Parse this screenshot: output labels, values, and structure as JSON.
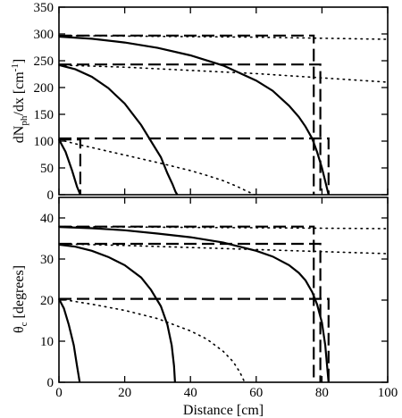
{
  "chart_data": [
    {
      "type": "line",
      "panel": "top",
      "ylabel": "dN_ph/dx [cm^-1]",
      "ylabel_parts": {
        "main": "dN",
        "sub": "ph",
        "mid": "/dx [cm",
        "sup": "-1",
        "end": "]"
      },
      "xlabel": "",
      "xlim": [
        0,
        100
      ],
      "ylim": [
        0,
        350
      ],
      "yticks": [
        0,
        50,
        100,
        150,
        200,
        250,
        300,
        350
      ],
      "xticks": [
        0,
        20,
        40,
        60,
        80,
        100
      ],
      "show_xtick_labels": false,
      "grid": false,
      "series": [
        {
          "style": "solid",
          "x": [
            0,
            2,
            4,
            5.5,
            6.5
          ],
          "y": [
            103,
            80,
            45,
            15,
            0
          ]
        },
        {
          "style": "solid",
          "x": [
            0,
            5,
            10,
            15,
            20,
            25,
            28,
            31,
            33,
            34.5,
            35.5,
            36
          ],
          "y": [
            242,
            234,
            220,
            199,
            170,
            130,
            100,
            70,
            40,
            20,
            5,
            0
          ]
        },
        {
          "style": "solid",
          "x": [
            0,
            10,
            20,
            30,
            40,
            50,
            60,
            65,
            70,
            73,
            75,
            77,
            78.5,
            80,
            81,
            82
          ],
          "y": [
            295,
            291,
            284,
            274,
            260,
            241,
            213,
            194,
            166,
            145,
            127,
            105,
            80,
            50,
            25,
            0
          ]
        },
        {
          "style": "dashed",
          "x": [
            0,
            6.5,
            6.5
          ],
          "y": [
            103,
            103,
            0
          ],
          "note": "overlaps solid near x=6.5"
        },
        {
          "style": "dashed",
          "x": [
            0,
            82,
            82
          ],
          "y": [
            105,
            105,
            0
          ]
        },
        {
          "style": "dashed",
          "x": [
            0,
            79.5,
            79.5
          ],
          "y": [
            243,
            243,
            0
          ]
        },
        {
          "style": "dashed",
          "x": [
            0,
            77.5,
            77.5
          ],
          "y": [
            297,
            297,
            0
          ]
        },
        {
          "style": "dotted",
          "x": [
            0,
            5,
            10,
            20,
            30,
            40,
            45,
            50,
            54,
            57,
            59.5
          ],
          "y": [
            103,
            95,
            88,
            74,
            60,
            45,
            36,
            26,
            16,
            7,
            0
          ]
        },
        {
          "style": "dotted",
          "x": [
            0,
            20,
            40,
            60,
            80,
            100
          ],
          "y": [
            242,
            238,
            232,
            226,
            218,
            210
          ]
        },
        {
          "style": "dotted",
          "x": [
            0,
            20,
            40,
            60,
            80,
            100
          ],
          "y": [
            297,
            296,
            295,
            294,
            292,
            290
          ]
        }
      ]
    },
    {
      "type": "line",
      "panel": "bottom",
      "ylabel": "θc [degrees]",
      "ylabel_parts": {
        "main": "θ",
        "sub": "c",
        "end": " [degrees]"
      },
      "xlabel": "Distance [cm]",
      "xlim": [
        0,
        100
      ],
      "ylim": [
        0,
        45
      ],
      "yticks": [
        0,
        10,
        20,
        30,
        40
      ],
      "xticks": [
        0,
        20,
        40,
        60,
        80,
        100
      ],
      "show_xtick_labels": true,
      "grid": false,
      "series": [
        {
          "style": "solid",
          "x": [
            0,
            1.5,
            3,
            4.5,
            5.5,
            6,
            6.3
          ],
          "y": [
            20.3,
            18,
            14,
            9,
            4,
            1.5,
            0
          ]
        },
        {
          "style": "solid",
          "x": [
            0,
            5,
            10,
            15,
            20,
            25,
            28,
            31,
            33,
            34.3,
            35,
            35.3
          ],
          "y": [
            33.5,
            33,
            32,
            30.5,
            28.5,
            25.5,
            22.5,
            18.5,
            14,
            9,
            4,
            0
          ]
        },
        {
          "style": "solid",
          "x": [
            0,
            10,
            20,
            30,
            40,
            50,
            60,
            65,
            70,
            73,
            75,
            77,
            78.5,
            80,
            81,
            82
          ],
          "y": [
            37.8,
            37.5,
            37,
            36.2,
            35.3,
            34,
            32,
            30.6,
            28.5,
            26.6,
            24.8,
            22,
            19,
            14.5,
            9,
            0
          ]
        },
        {
          "style": "dashed",
          "x": [
            0,
            82,
            82
          ],
          "y": [
            20.3,
            20.3,
            0
          ]
        },
        {
          "style": "dashed",
          "x": [
            0,
            79.5,
            79.5
          ],
          "y": [
            33.7,
            33.7,
            0
          ]
        },
        {
          "style": "dashed",
          "x": [
            0,
            77.5,
            77.5
          ],
          "y": [
            37.9,
            37.9,
            0
          ]
        },
        {
          "style": "dotted",
          "x": [
            0,
            10,
            20,
            30,
            40,
            45,
            50,
            53,
            55,
            56.5
          ],
          "y": [
            20.3,
            19,
            17.5,
            15.5,
            12.5,
            10.5,
            7.5,
            5,
            2.5,
            0
          ]
        },
        {
          "style": "dotted",
          "x": [
            0,
            20,
            40,
            60,
            80,
            100
          ],
          "y": [
            33.7,
            33.3,
            32.8,
            32.3,
            31.8,
            31.3
          ]
        },
        {
          "style": "dotted",
          "x": [
            0,
            20,
            40,
            60,
            80,
            100
          ],
          "y": [
            37.9,
            37.8,
            37.7,
            37.6,
            37.5,
            37.4
          ]
        }
      ]
    }
  ]
}
